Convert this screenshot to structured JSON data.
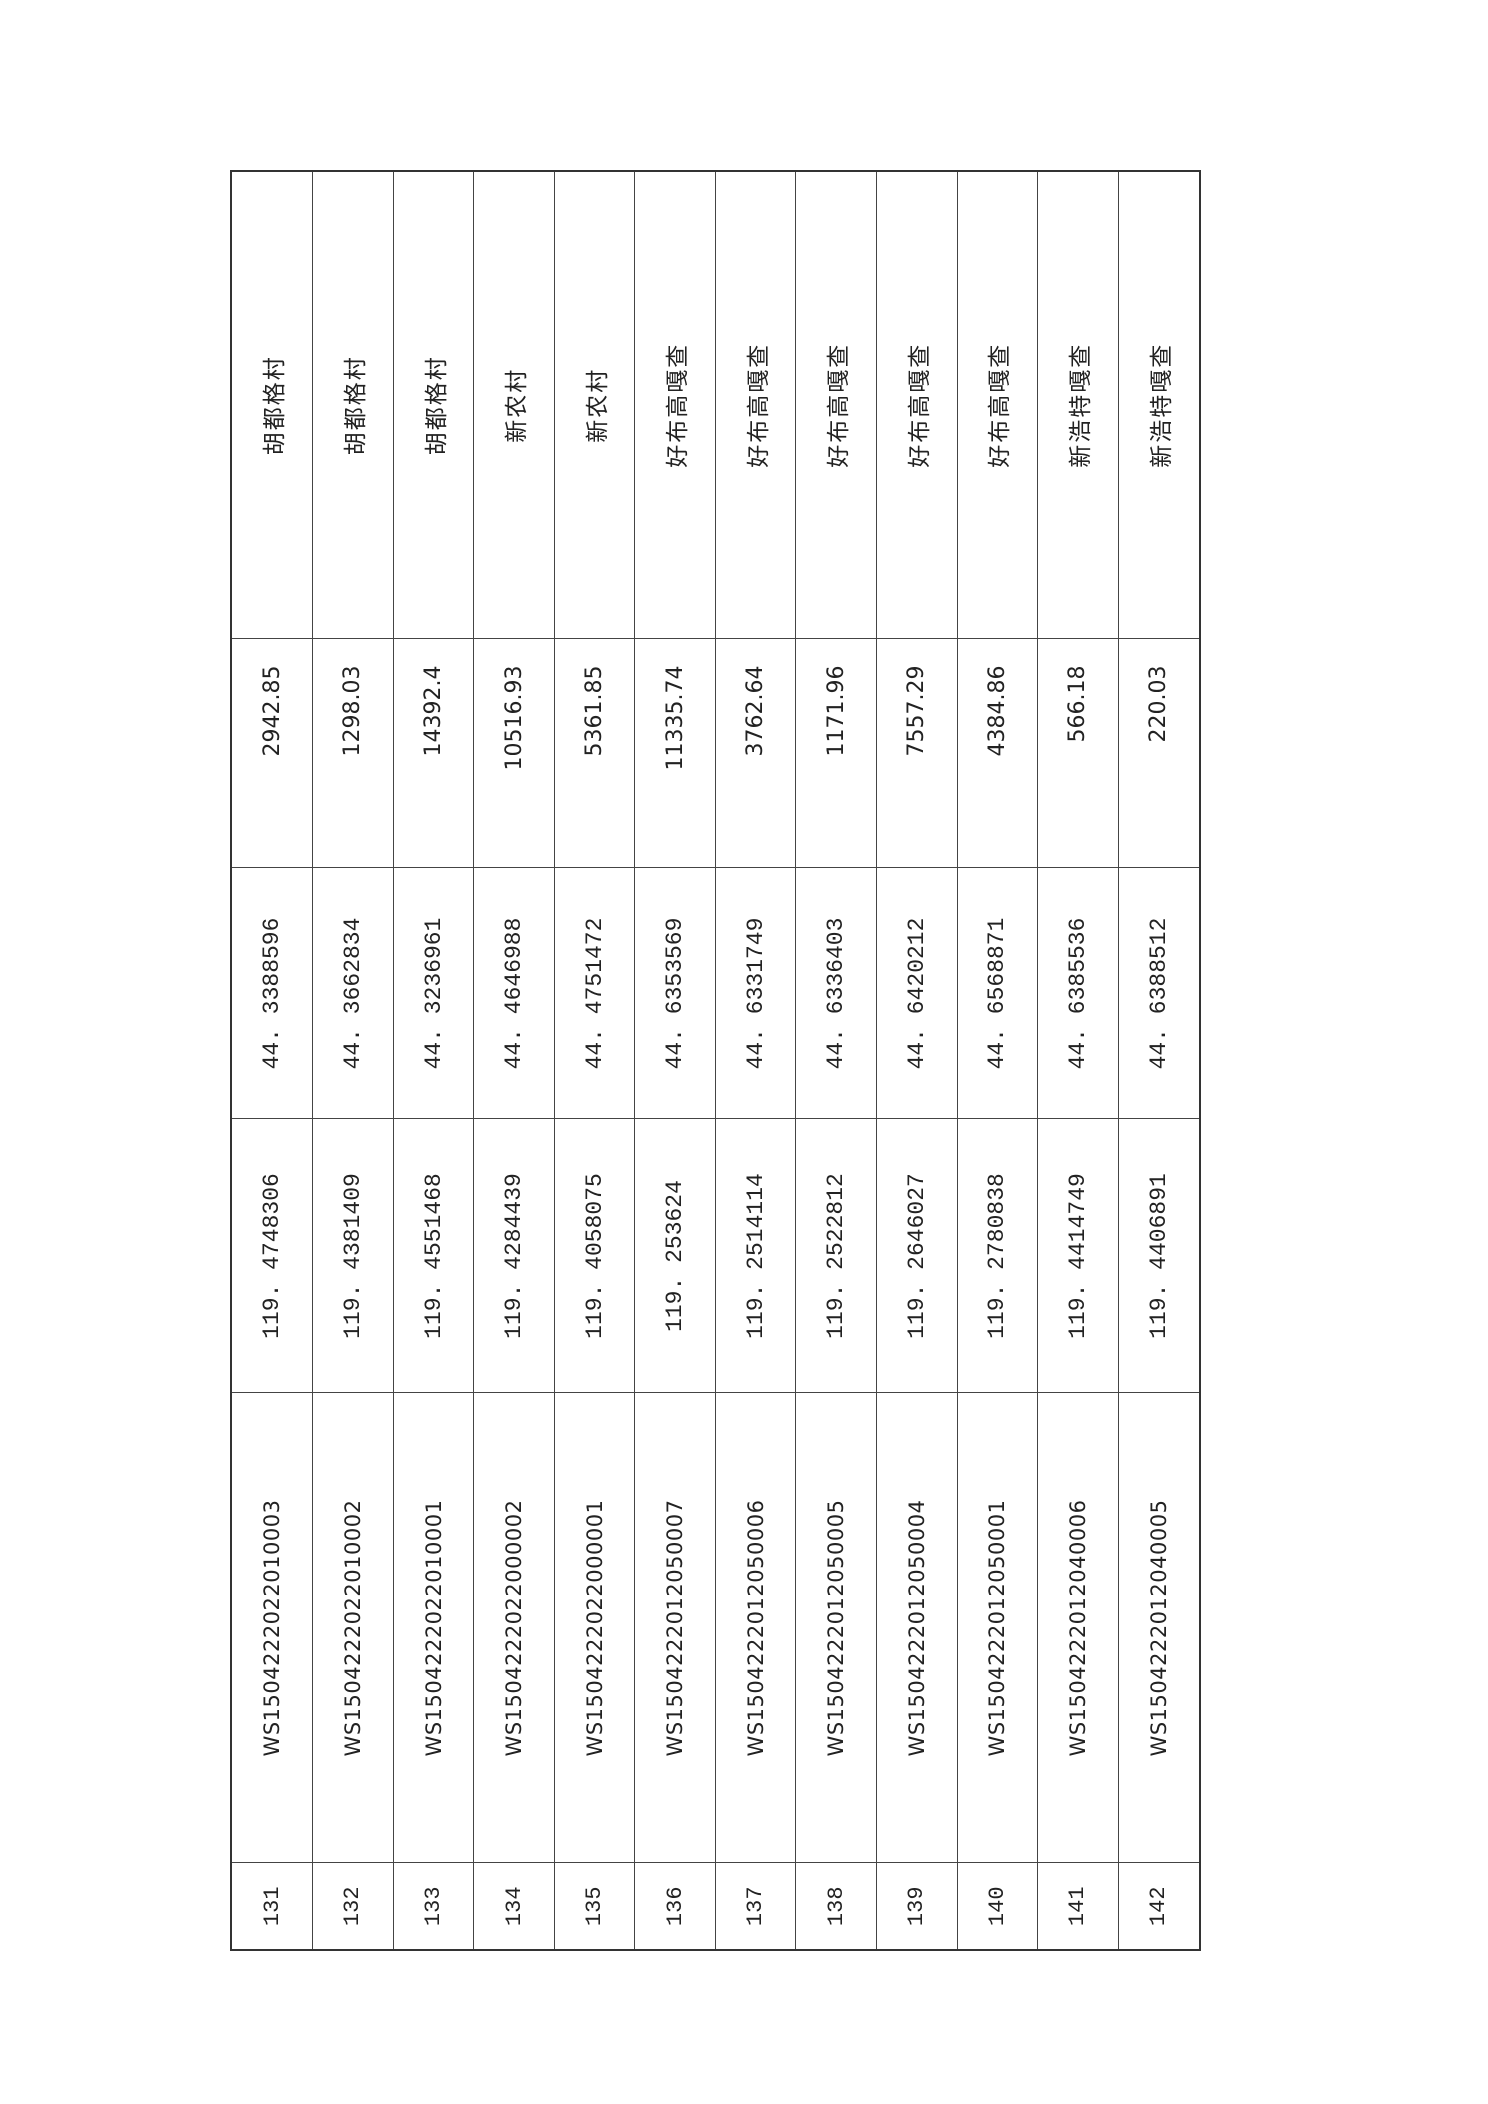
{
  "table": {
    "rows": [
      {
        "no": "131",
        "id": "WS150422202201000 3",
        "lon": "119. 4748306",
        "lat": "44. 3388596",
        "area": "2942.85",
        "village": "胡都格村"
      },
      {
        "no": "132",
        "id": "WS1504222022010002",
        "lon": "119. 4381409",
        "lat": "44. 3662834",
        "area": "1298.03",
        "village": "胡都格村"
      },
      {
        "no": "133",
        "id": "WS1504222022010001",
        "lon": "119. 4551468",
        "lat": "44. 3236961",
        "area": "14392.4",
        "village": "胡都格村"
      },
      {
        "no": "134",
        "id": "WS1504222022000002",
        "lon": "119. 4284439",
        "lat": "44. 4646988",
        "area": "10516.93",
        "village": "新农村"
      },
      {
        "no": "135",
        "id": "WS1504222022000001",
        "lon": "119. 4058075",
        "lat": "44. 4751472",
        "area": "5361.85",
        "village": "新农村"
      },
      {
        "no": "136",
        "id": "WS1504222012050007",
        "lon": "119. 253624",
        "lat": "44. 6353569",
        "area": "11335.74",
        "village": "好布高嘎查"
      },
      {
        "no": "137",
        "id": "WS1504222012050006",
        "lon": "119. 2514114",
        "lat": "44. 6331749",
        "area": "3762.64",
        "village": "好布高嘎查"
      },
      {
        "no": "138",
        "id": "WS1504222012050005",
        "lon": "119. 2522812",
        "lat": "44. 6336403",
        "area": "1171.96",
        "village": "好布高嘎查"
      },
      {
        "no": "139",
        "id": "WS1504222012050004",
        "lon": "119. 2646027",
        "lat": "44. 6420212",
        "area": "7557.29",
        "village": "好布高嘎查"
      },
      {
        "no": "140",
        "id": "WS1504222012050001",
        "lon": "119. 2780838",
        "lat": "44. 6568871",
        "area": "4384.86",
        "village": "好布高嘎查"
      },
      {
        "no": "141",
        "id": "WS1504222012040006",
        "lon": "119. 4414749",
        "lat": "44. 6385536",
        "area": "566.18",
        "village": "新浩特嘎查"
      },
      {
        "no": "142",
        "id": "WS1504222012040005",
        "lon": "119. 4406891",
        "lat": "44. 6388512",
        "area": "220.03",
        "village": "新浩特嘎查"
      }
    ]
  }
}
